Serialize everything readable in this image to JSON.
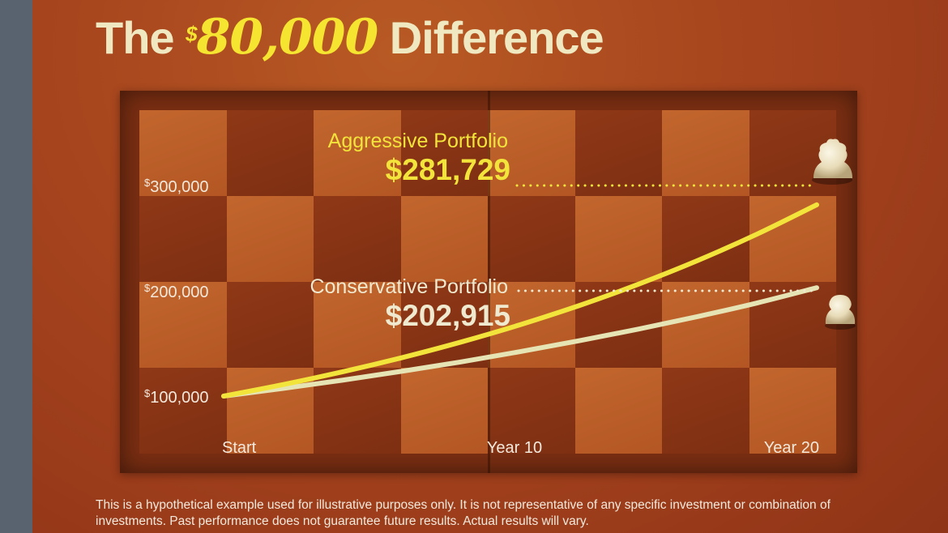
{
  "title": {
    "prefix": "The",
    "currency_symbol": "$",
    "amount": "80,000",
    "suffix": "Difference"
  },
  "chart_data": {
    "type": "line",
    "x_categories": [
      "Start",
      "Year 10",
      "Year 20"
    ],
    "x_range": [
      0,
      20
    ],
    "ylim": [
      100000,
      300000
    ],
    "y_ticks": [
      {
        "symbol": "$",
        "label": "100,000",
        "value": 100000
      },
      {
        "symbol": "$",
        "label": "200,000",
        "value": 200000
      },
      {
        "symbol": "$",
        "label": "300,000",
        "value": 300000
      }
    ],
    "series": [
      {
        "name": "Aggressive Portfolio",
        "value_label": "$281,729",
        "color": "#f2e43a",
        "x": [
          0,
          2,
          4,
          6,
          8,
          10,
          12,
          14,
          16,
          18,
          20
        ],
        "values": [
          100000,
          110900,
          123000,
          136400,
          151300,
          167800,
          186100,
          206400,
          228900,
          254000,
          281729
        ]
      },
      {
        "name": "Conservative Portfolio",
        "value_label": "$202,915",
        "color": "#e6e3b4",
        "x": [
          0,
          2,
          4,
          6,
          8,
          10,
          12,
          14,
          16,
          18,
          20
        ],
        "values": [
          100000,
          107300,
          115100,
          123500,
          132500,
          142200,
          152600,
          163700,
          175600,
          188500,
          202915
        ]
      }
    ],
    "grid": false,
    "legend": "inline-labels"
  },
  "disclaimer": "This is a hypothetical example used for illustrative purposes only. It is not representative of any specific investment or combination of investments. Past performance does not guarantee future results. Actual results will vary."
}
